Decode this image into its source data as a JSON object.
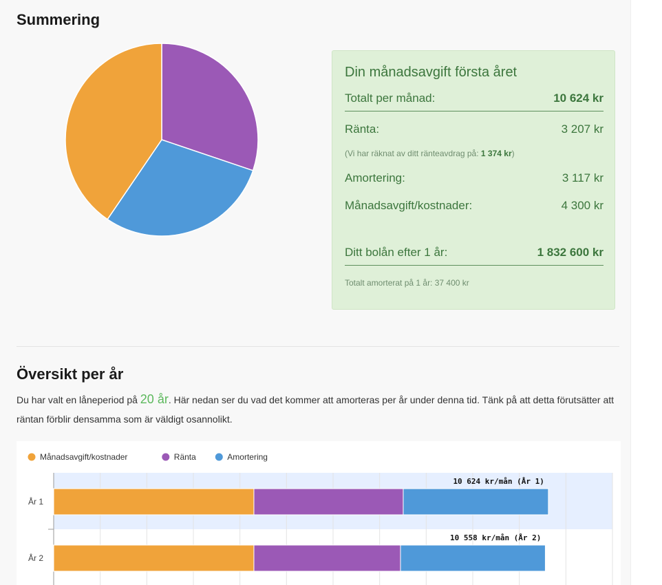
{
  "summary": {
    "heading": "Summering",
    "pie": {
      "slices": [
        {
          "name": "Ränta",
          "value": 3207,
          "color": "#9b59b6"
        },
        {
          "name": "Amortering",
          "value": 3117,
          "color": "#4f99d9"
        },
        {
          "name": "Månadsavgift/kostnader",
          "value": 4300,
          "color": "#f0a33a"
        }
      ]
    },
    "box": {
      "title": "Din månadsavgift första året",
      "total_label": "Totalt per månad:",
      "total_value": "10 624 kr",
      "interest_label": "Ränta:",
      "interest_value": "3 207 kr",
      "deduction_note": "(Vi har räknat av ditt ränteavdrag på:",
      "deduction_value": "1 374 kr",
      "deduction_close": ")",
      "amortization_label": "Amortering:",
      "amortization_value": "3 117 kr",
      "fees_label": "Månadsavgift/kostnader:",
      "fees_value": "4 300 kr",
      "loan_after_label": "Ditt bolån efter 1 år:",
      "loan_after_value": "1 832 600 kr",
      "total_amortized_note": "Totalt amorterat på 1 år: 37 400 kr"
    }
  },
  "overview": {
    "heading": "Översikt per år",
    "intro_before": "Du har valt en låneperiod på",
    "years": "20 år",
    "intro_after": ". Här nedan ser du vad det kommer att amorteras per år under denna tid. Tänk på att detta förutsätter att räntan förblir densamma som är väldigt osannolikt."
  },
  "chart_data": {
    "type": "bar",
    "orientation": "horizontal",
    "stacked": true,
    "categories": [
      "År 1",
      "År 2"
    ],
    "series": [
      {
        "name": "Månadsavgift/kostnader",
        "color": "#f0a33a",
        "values": [
          4300,
          4300
        ]
      },
      {
        "name": "Ränta",
        "color": "#9b59b6",
        "values": [
          3207,
          3148
        ]
      },
      {
        "name": "Amortering",
        "color": "#4f99d9",
        "values": [
          3117,
          3110
        ]
      }
    ],
    "totals": [
      "10 624 kr/mån (År 1)",
      "10 558 kr/mån (År 2)"
    ],
    "xlim": [
      0,
      12000
    ],
    "legend": "top-left",
    "grid": true,
    "highlighted_category": "År 1"
  }
}
